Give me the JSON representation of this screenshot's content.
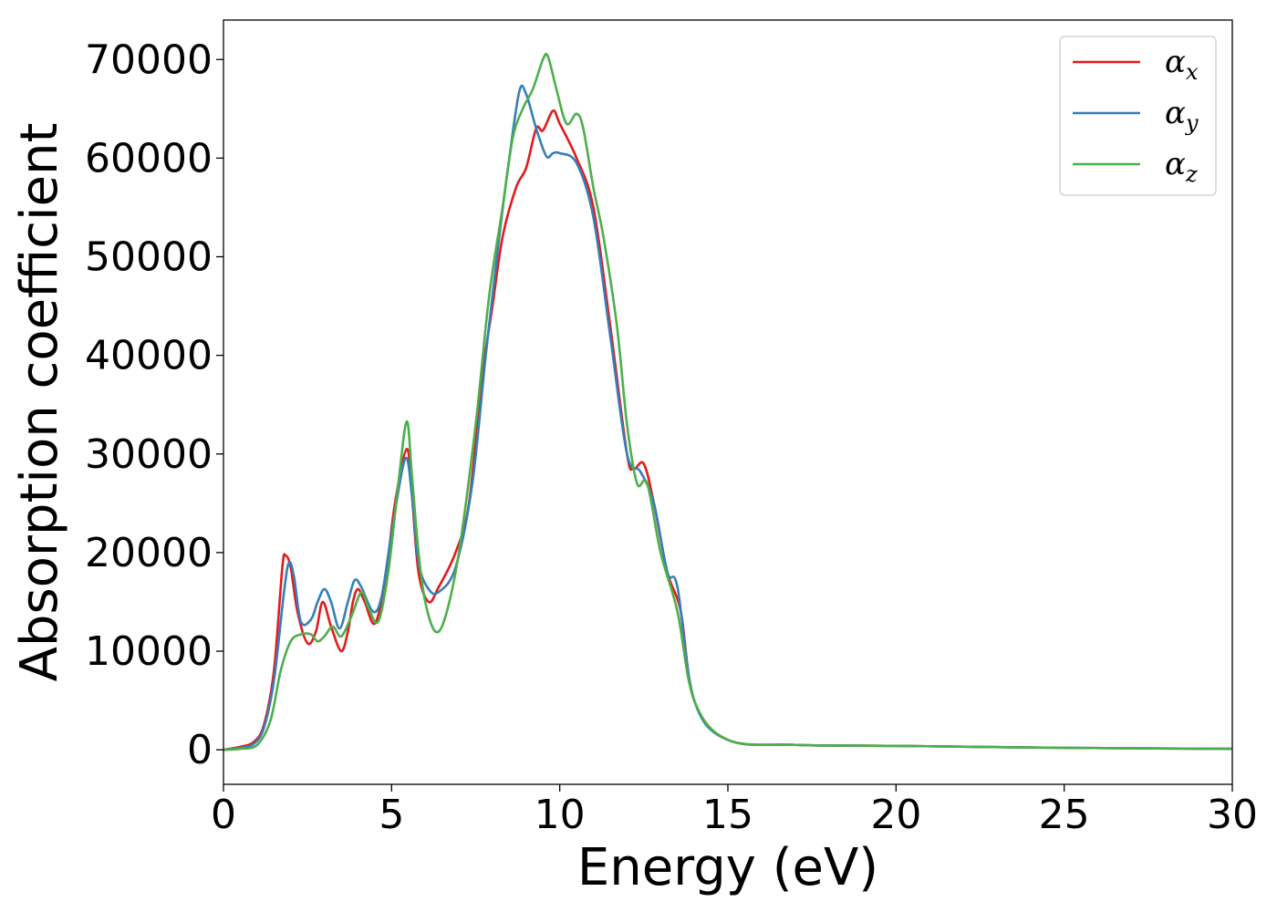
{
  "chart_data": {
    "type": "line",
    "xlabel": "Energy (eV)",
    "ylabel": "Absorption coefficient",
    "xlim": [
      0,
      30
    ],
    "ylim": [
      -3500,
      74000
    ],
    "xticks": [
      0,
      5,
      10,
      15,
      20,
      25,
      30
    ],
    "xtick_labels": [
      "0",
      "5",
      "10",
      "15",
      "20",
      "25",
      "30"
    ],
    "yticks": [
      0,
      10000,
      20000,
      30000,
      40000,
      50000,
      60000,
      70000
    ],
    "ytick_labels": [
      "0",
      "10000",
      "20000",
      "30000",
      "40000",
      "50000",
      "60000",
      "70000"
    ],
    "grid": false,
    "legend_position": "top-right",
    "series": [
      {
        "name": "α",
        "subscript": "x",
        "color": "#e41a1c",
        "x": [
          0,
          0.5,
          0.9,
          1.2,
          1.5,
          1.75,
          1.85,
          2.0,
          2.2,
          2.5,
          2.75,
          2.95,
          3.2,
          3.5,
          3.7,
          3.85,
          4.0,
          4.2,
          4.5,
          4.8,
          5.1,
          5.45,
          5.6,
          5.8,
          6.1,
          6.4,
          6.9,
          7.3,
          7.7,
          8.0,
          8.3,
          8.7,
          9.0,
          9.3,
          9.5,
          9.8,
          10.0,
          10.5,
          11.0,
          11.5,
          12.0,
          12.2,
          12.5,
          12.8,
          13.2,
          13.6,
          14.0,
          15.0,
          17.0,
          20.0,
          25.0,
          30.0
        ],
        "values": [
          0,
          300,
          800,
          2500,
          8000,
          18500,
          19700,
          18500,
          14000,
          10800,
          12000,
          15000,
          12500,
          10000,
          12000,
          15000,
          16300,
          15000,
          12800,
          17000,
          25000,
          30500,
          26000,
          18000,
          15000,
          16500,
          20000,
          25000,
          38000,
          45000,
          52000,
          57000,
          59000,
          63000,
          62800,
          64800,
          63500,
          60000,
          55000,
          43000,
          30000,
          28500,
          29000,
          25000,
          18000,
          14000,
          5000,
          1000,
          500,
          400,
          200,
          100
        ]
      },
      {
        "name": "α",
        "subscript": "y",
        "color": "#377eb8",
        "x": [
          0,
          0.5,
          0.9,
          1.2,
          1.5,
          1.8,
          1.95,
          2.1,
          2.3,
          2.6,
          2.8,
          3.0,
          3.2,
          3.45,
          3.7,
          3.9,
          4.1,
          4.45,
          4.7,
          5.0,
          5.4,
          5.6,
          5.8,
          6.1,
          6.4,
          6.9,
          7.4,
          7.8,
          8.2,
          8.5,
          8.8,
          9.0,
          9.3,
          9.6,
          9.8,
          10.0,
          10.5,
          11.0,
          11.5,
          12.0,
          12.4,
          12.8,
          13.2,
          13.5,
          14.0,
          15.0,
          17.0,
          20.0,
          25.0,
          30.0
        ],
        "values": [
          0,
          200,
          600,
          2200,
          7000,
          16000,
          19000,
          17500,
          13000,
          13200,
          15000,
          16300,
          15000,
          12300,
          15000,
          17200,
          16500,
          14000,
          15500,
          22000,
          29500,
          26000,
          19000,
          16300,
          16000,
          18500,
          27000,
          40000,
          52000,
          60000,
          66800,
          66500,
          63000,
          60200,
          60500,
          60500,
          59500,
          54000,
          42000,
          30000,
          28200,
          25000,
          18000,
          16500,
          5000,
          1000,
          500,
          400,
          200,
          100
        ]
      },
      {
        "name": "α",
        "subscript": "z",
        "color": "#4daf4a",
        "x": [
          0,
          0.5,
          1.0,
          1.4,
          1.7,
          2.0,
          2.3,
          2.6,
          2.8,
          3.0,
          3.25,
          3.5,
          3.8,
          4.1,
          4.3,
          4.6,
          4.9,
          5.2,
          5.45,
          5.6,
          5.8,
          6.0,
          6.3,
          6.6,
          7.0,
          7.5,
          7.9,
          8.3,
          8.6,
          8.9,
          9.2,
          9.5,
          9.65,
          9.9,
          10.2,
          10.5,
          10.7,
          11.0,
          11.3,
          11.7,
          12.0,
          12.3,
          12.6,
          13.0,
          13.5,
          14.0,
          15.0,
          17.0,
          20.0,
          25.0,
          30.0
        ],
        "values": [
          0,
          100,
          500,
          3000,
          8000,
          11000,
          11700,
          11700,
          11000,
          11500,
          12500,
          11500,
          13500,
          16000,
          14500,
          13000,
          18000,
          27000,
          33300,
          28000,
          20000,
          15000,
          12000,
          13500,
          20000,
          33000,
          46000,
          55000,
          62000,
          65000,
          67000,
          70000,
          70300,
          67000,
          63500,
          64500,
          63000,
          57000,
          52000,
          43000,
          33000,
          27000,
          27000,
          20000,
          14000,
          5000,
          1000,
          500,
          400,
          200,
          100
        ]
      }
    ]
  }
}
